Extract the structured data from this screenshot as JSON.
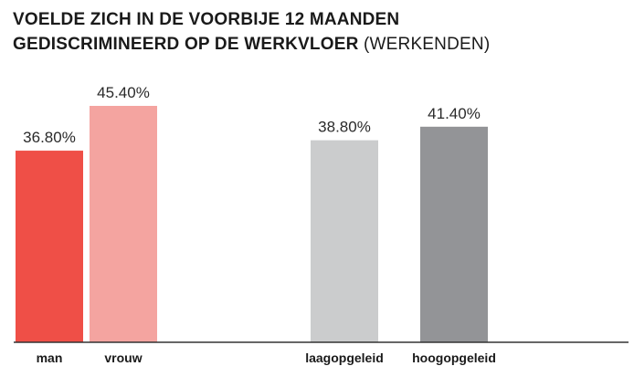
{
  "title_line1": "VOELDE ZICH IN DE VOORBIJE 12 MAANDEN",
  "title_line2": "GEDISCRIMINEERD OP DE WERKVLOER",
  "title_suffix": "(WERKENDEN)",
  "chart_data": {
    "type": "bar",
    "categories": [
      "man",
      "vrouw",
      "laagopgeleid",
      "hoogopgeleid"
    ],
    "values": [
      36.8,
      45.4,
      38.8,
      41.4
    ],
    "value_labels": [
      "36.80%",
      "45.40%",
      "38.80%",
      "41.40%"
    ],
    "colors": [
      "#ef4f47",
      "#f4a4a0",
      "#cbcccd",
      "#939497"
    ],
    "ylim": [
      0,
      50
    ]
  }
}
